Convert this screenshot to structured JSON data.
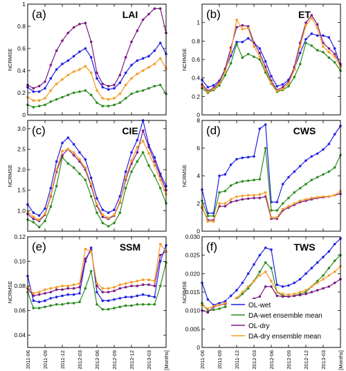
{
  "figure": {
    "x_tick_labels": [
      "2011-06",
      "2011-09",
      "2011-12",
      "2012-03",
      "2012-06",
      "2012-09",
      "2012-12",
      "2013-03",
      "[Months]"
    ],
    "legend": [
      "OL-wet",
      "DA-wet ensemble mean",
      "OL-dry",
      "DA-dry ensemble mean"
    ],
    "colors": {
      "OL-wet": "#1f1fe6",
      "DA-wet ensemble mean": "#2a8a1e",
      "OL-dry": "#7a1a82",
      "DA-dry ensemble mean": "#f59a23"
    }
  },
  "chart_data": [
    {
      "type": "line",
      "panel_label": "(a)",
      "title": "LAI",
      "ylabel": "NCRMSE",
      "ylim": [
        0,
        1.0
      ],
      "yticks": [
        "0",
        "0.2",
        "0.4",
        "0.6",
        "0.8",
        "1"
      ],
      "x": [
        1,
        2,
        3,
        4,
        5,
        6,
        7,
        8,
        9,
        10,
        11,
        12,
        13,
        14,
        15,
        16,
        17,
        18,
        19,
        20,
        21,
        22,
        23,
        24,
        25
      ],
      "series": [
        {
          "name": "OL-wet",
          "values": [
            0.25,
            0.21,
            0.21,
            0.24,
            0.33,
            0.41,
            0.46,
            0.49,
            0.53,
            0.57,
            0.6,
            0.52,
            0.33,
            0.25,
            0.23,
            0.24,
            0.29,
            0.38,
            0.45,
            0.49,
            0.51,
            0.53,
            0.58,
            0.65,
            0.55
          ]
        },
        {
          "name": "DA-wet ensemble mean",
          "values": [
            0.09,
            0.07,
            0.08,
            0.09,
            0.12,
            0.14,
            0.16,
            0.18,
            0.2,
            0.21,
            0.22,
            0.18,
            0.11,
            0.08,
            0.08,
            0.09,
            0.11,
            0.15,
            0.19,
            0.21,
            0.22,
            0.24,
            0.26,
            0.27,
            0.19
          ]
        },
        {
          "name": "OL-dry",
          "values": [
            0.27,
            0.24,
            0.26,
            0.3,
            0.45,
            0.58,
            0.67,
            0.74,
            0.79,
            0.82,
            0.83,
            0.66,
            0.38,
            0.28,
            0.26,
            0.27,
            0.36,
            0.52,
            0.66,
            0.76,
            0.86,
            0.91,
            0.96,
            0.96,
            0.74
          ]
        },
        {
          "name": "DA-dry ensemble mean",
          "values": [
            0.16,
            0.13,
            0.13,
            0.15,
            0.22,
            0.28,
            0.32,
            0.36,
            0.39,
            0.41,
            0.44,
            0.38,
            0.22,
            0.15,
            0.14,
            0.15,
            0.19,
            0.27,
            0.33,
            0.37,
            0.4,
            0.43,
            0.46,
            0.51,
            0.42
          ]
        }
      ]
    },
    {
      "type": "line",
      "panel_label": "(b)",
      "title": "ET",
      "ylabel": "NCRMSE",
      "ylim": [
        0,
        1.2
      ],
      "yticks": [
        "0",
        "0.2",
        "0.4",
        "0.6",
        "0.8",
        "1"
      ],
      "x": [
        1,
        2,
        3,
        4,
        5,
        6,
        7,
        8,
        9,
        10,
        11,
        12,
        13,
        14,
        15,
        16,
        17,
        18,
        19,
        20,
        21,
        22,
        23,
        24,
        25
      ],
      "series": [
        {
          "name": "OL-wet",
          "values": [
            0.38,
            0.3,
            0.32,
            0.37,
            0.49,
            0.64,
            0.79,
            0.79,
            0.83,
            0.78,
            0.72,
            0.58,
            0.42,
            0.31,
            0.33,
            0.38,
            0.5,
            0.67,
            0.82,
            0.88,
            0.86,
            0.86,
            0.84,
            0.72,
            0.53
          ]
        },
        {
          "name": "DA-wet ensemble mean",
          "values": [
            0.29,
            0.24,
            0.27,
            0.32,
            0.43,
            0.56,
            0.77,
            0.62,
            0.66,
            0.63,
            0.6,
            0.46,
            0.34,
            0.25,
            0.27,
            0.31,
            0.41,
            0.55,
            0.78,
            0.75,
            0.7,
            0.68,
            0.62,
            0.57,
            0.48
          ]
        },
        {
          "name": "OL-dry",
          "values": [
            0.33,
            0.26,
            0.29,
            0.36,
            0.5,
            0.73,
            0.95,
            0.97,
            0.96,
            0.78,
            0.67,
            0.52,
            0.37,
            0.27,
            0.3,
            0.36,
            0.52,
            0.78,
            1.0,
            1.08,
            0.98,
            0.78,
            0.72,
            0.66,
            0.55
          ]
        },
        {
          "name": "DA-dry ensemble mean",
          "values": [
            0.31,
            0.25,
            0.28,
            0.34,
            0.47,
            0.69,
            1.03,
            0.93,
            0.94,
            0.74,
            0.63,
            0.49,
            0.35,
            0.26,
            0.28,
            0.34,
            0.49,
            0.74,
            0.97,
            1.05,
            0.94,
            0.74,
            0.68,
            0.63,
            0.52
          ]
        }
      ]
    },
    {
      "type": "line",
      "panel_label": "(c)",
      "title": "CIE",
      "ylabel": "NCRMSE",
      "ylim": [
        0.5,
        3.2
      ],
      "yticks": [
        "1.0",
        "1.5",
        "2.0",
        "2.5",
        "3.0"
      ],
      "x": [
        1,
        2,
        3,
        4,
        5,
        6,
        7,
        8,
        9,
        10,
        11,
        12,
        13,
        14,
        15,
        16,
        17,
        18,
        19,
        20,
        21,
        22,
        23,
        24,
        25
      ],
      "series": [
        {
          "name": "OL-wet",
          "values": [
            1.15,
            0.95,
            0.88,
            1.05,
            1.55,
            2.2,
            2.65,
            2.78,
            2.62,
            2.42,
            2.25,
            1.8,
            1.3,
            1.02,
            0.95,
            1.02,
            1.35,
            1.95,
            2.42,
            2.72,
            3.2,
            2.6,
            2.3,
            1.9,
            1.6
          ]
        },
        {
          "name": "DA-wet ensemble mean",
          "values": [
            0.78,
            0.72,
            0.6,
            0.75,
            1.1,
            1.6,
            2.3,
            2.15,
            2.05,
            1.9,
            1.75,
            1.35,
            0.95,
            0.7,
            0.62,
            0.7,
            0.95,
            1.55,
            1.95,
            2.2,
            2.42,
            2.1,
            1.85,
            1.55,
            1.18
          ]
        },
        {
          "name": "OL-dry",
          "values": [
            0.92,
            0.8,
            0.75,
            0.9,
            1.35,
            1.95,
            2.35,
            2.5,
            2.35,
            2.2,
            2.0,
            1.6,
            1.12,
            0.85,
            0.8,
            0.88,
            1.2,
            1.75,
            2.15,
            2.42,
            2.95,
            2.55,
            2.2,
            1.85,
            1.5
          ]
        },
        {
          "name": "DA-dry ensemble mean",
          "values": [
            0.98,
            0.85,
            0.78,
            0.92,
            1.38,
            2.0,
            2.45,
            2.5,
            2.42,
            2.25,
            2.05,
            1.65,
            1.15,
            0.9,
            0.82,
            0.9,
            1.22,
            1.8,
            2.22,
            2.55,
            2.7,
            2.4,
            2.1,
            1.75,
            1.4
          ]
        }
      ]
    },
    {
      "type": "line",
      "panel_label": "(d)",
      "title": "CWS",
      "ylabel": "NCRMSE",
      "ylim": [
        0,
        8
      ],
      "yticks": [
        "0",
        "2",
        "4",
        "6",
        "8"
      ],
      "x": [
        1,
        2,
        3,
        4,
        5,
        6,
        7,
        8,
        9,
        10,
        11,
        12,
        13,
        14,
        15,
        16,
        17,
        18,
        19,
        20,
        21,
        22,
        23,
        24,
        25
      ],
      "series": [
        {
          "name": "OL-wet",
          "values": [
            3.0,
            1.3,
            1.3,
            4.0,
            4.1,
            4.8,
            5.2,
            5.3,
            5.35,
            5.4,
            7.4,
            7.7,
            2.1,
            2.1,
            3.4,
            3.9,
            4.3,
            4.7,
            5.1,
            5.4,
            5.6,
            5.9,
            6.3,
            7.0,
            7.6
          ]
        },
        {
          "name": "DA-wet ensemble mean",
          "values": [
            2.2,
            1.1,
            1.1,
            2.8,
            2.9,
            3.3,
            3.5,
            3.6,
            3.65,
            3.7,
            3.75,
            6.0,
            1.5,
            1.5,
            2.0,
            2.4,
            2.8,
            3.1,
            3.4,
            3.7,
            3.9,
            4.1,
            4.3,
            4.6,
            5.5
          ]
        },
        {
          "name": "OL-dry",
          "values": [
            1.7,
            0.8,
            0.8,
            1.8,
            1.8,
            2.1,
            2.2,
            2.3,
            2.35,
            2.4,
            2.4,
            2.5,
            0.9,
            0.9,
            1.5,
            1.7,
            1.9,
            2.1,
            2.2,
            2.3,
            2.4,
            2.45,
            2.5,
            2.6,
            2.7
          ]
        },
        {
          "name": "DA-dry ensemble mean",
          "values": [
            1.8,
            0.7,
            0.7,
            2.0,
            2.0,
            2.3,
            2.5,
            2.55,
            2.6,
            2.6,
            2.65,
            2.8,
            1.0,
            1.0,
            1.6,
            1.8,
            2.0,
            2.2,
            2.3,
            2.4,
            2.45,
            2.5,
            2.5,
            2.6,
            2.9
          ]
        }
      ]
    },
    {
      "type": "line",
      "panel_label": "(e)",
      "title": "SSM",
      "ylabel": "NCRMSE",
      "ylim": [
        0.03,
        0.12
      ],
      "yticks": [
        "0.04",
        "0.06",
        "0.08",
        "0.10",
        "0.12"
      ],
      "x": [
        1,
        2,
        3,
        4,
        5,
        6,
        7,
        8,
        9,
        10,
        11,
        12,
        13,
        14,
        15,
        16,
        17,
        18,
        19,
        20,
        21,
        22,
        23,
        24,
        25
      ],
      "series": [
        {
          "name": "OL-wet",
          "values": [
            0.088,
            0.068,
            0.067,
            0.068,
            0.07,
            0.071,
            0.072,
            0.073,
            0.073,
            0.074,
            0.1,
            0.111,
            0.075,
            0.068,
            0.068,
            0.069,
            0.07,
            0.071,
            0.071,
            0.072,
            0.073,
            0.072,
            0.071,
            0.1,
            0.113
          ]
        },
        {
          "name": "DA-wet ensemble mean",
          "values": [
            0.075,
            0.062,
            0.062,
            0.063,
            0.064,
            0.065,
            0.065,
            0.066,
            0.066,
            0.067,
            0.078,
            0.092,
            0.065,
            0.061,
            0.061,
            0.062,
            0.063,
            0.064,
            0.064,
            0.065,
            0.065,
            0.065,
            0.065,
            0.08,
            0.099
          ]
        },
        {
          "name": "OL-dry",
          "values": [
            0.078,
            0.072,
            0.073,
            0.074,
            0.075,
            0.077,
            0.077,
            0.078,
            0.078,
            0.079,
            0.102,
            0.109,
            0.08,
            0.075,
            0.075,
            0.076,
            0.078,
            0.079,
            0.08,
            0.08,
            0.081,
            0.081,
            0.08,
            0.105,
            0.108
          ]
        },
        {
          "name": "DA-dry ensemble mean",
          "values": [
            0.079,
            0.074,
            0.075,
            0.077,
            0.078,
            0.079,
            0.08,
            0.08,
            0.081,
            0.082,
            0.11,
            0.108,
            0.082,
            0.078,
            0.078,
            0.079,
            0.081,
            0.082,
            0.083,
            0.084,
            0.085,
            0.085,
            0.084,
            0.114,
            0.108
          ]
        }
      ]
    },
    {
      "type": "line",
      "panel_label": "(f)",
      "title": "TWS",
      "ylabel": "NCRMSE",
      "ylim": [
        0,
        0.03
      ],
      "yticks": [
        "0",
        "0.005",
        "0.010",
        "0.015",
        "0.020",
        "0.025",
        "0.030"
      ],
      "x": [
        1,
        2,
        3,
        4,
        5,
        6,
        7,
        8,
        9,
        10,
        11,
        12,
        13,
        14,
        15,
        16,
        17,
        18,
        19,
        20,
        21,
        22,
        23,
        24,
        25
      ],
      "series": [
        {
          "name": "OL-wet",
          "values": [
            0.0175,
            0.013,
            0.0115,
            0.012,
            0.0125,
            0.014,
            0.0155,
            0.0175,
            0.02,
            0.0225,
            0.025,
            0.027,
            0.0265,
            0.017,
            0.0165,
            0.0168,
            0.0175,
            0.0185,
            0.02,
            0.0215,
            0.023,
            0.0245,
            0.026,
            0.028,
            0.0295
          ]
        },
        {
          "name": "DA-wet ensemble mean",
          "values": [
            0.012,
            0.01,
            0.0102,
            0.0105,
            0.011,
            0.012,
            0.013,
            0.0145,
            0.016,
            0.018,
            0.0205,
            0.023,
            0.0215,
            0.015,
            0.014,
            0.0138,
            0.014,
            0.0145,
            0.015,
            0.0165,
            0.018,
            0.0195,
            0.0215,
            0.0235,
            0.025
          ]
        },
        {
          "name": "OL-dry",
          "values": [
            0.01,
            0.0095,
            0.011,
            0.0115,
            0.0118,
            0.012,
            0.0122,
            0.0125,
            0.0128,
            0.0132,
            0.0138,
            0.0165,
            0.0165,
            0.014,
            0.0138,
            0.0138,
            0.014,
            0.0142,
            0.0145,
            0.015,
            0.0155,
            0.016,
            0.0165,
            0.0175,
            0.0185
          ]
        },
        {
          "name": "DA-dry ensemble mean",
          "values": [
            0.0115,
            0.0105,
            0.0112,
            0.0115,
            0.012,
            0.0125,
            0.0135,
            0.015,
            0.0165,
            0.018,
            0.0195,
            0.0205,
            0.018,
            0.015,
            0.0145,
            0.0143,
            0.0145,
            0.015,
            0.0155,
            0.0165,
            0.0175,
            0.0185,
            0.0195,
            0.0205,
            0.022
          ]
        }
      ]
    }
  ]
}
